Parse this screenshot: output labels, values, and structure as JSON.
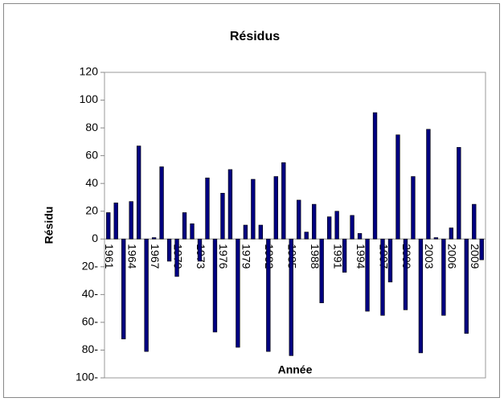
{
  "chart_data": {
    "type": "bar",
    "title": "Résidus",
    "x_label": "Année",
    "y_label": "Résidu",
    "categories": [
      "1961",
      null,
      null,
      "1964",
      null,
      null,
      "1967",
      null,
      null,
      "1970",
      null,
      null,
      "1973",
      null,
      null,
      "1976",
      null,
      null,
      "1979",
      null,
      null,
      "1982",
      null,
      null,
      "1985",
      null,
      null,
      "1988",
      null,
      null,
      "1991",
      null,
      null,
      "1994",
      null,
      null,
      "1997",
      null,
      null,
      "2000",
      null,
      null,
      "2003",
      null,
      null,
      "2006",
      null,
      null,
      "2009",
      null
    ],
    "values": [
      19,
      26,
      -72,
      27,
      67,
      -81,
      1,
      52,
      -16,
      -27,
      19,
      11,
      -16,
      44,
      -67,
      33,
      50,
      -78,
      10,
      43,
      10,
      -81,
      45,
      55,
      -84,
      28,
      5,
      25,
      -46,
      16,
      20,
      -24,
      17,
      4,
      -52,
      91,
      -55,
      -31,
      75,
      -51,
      45,
      -82,
      79,
      1,
      -55,
      8,
      66,
      -68,
      25,
      -15
    ],
    "color": "#000080",
    "ylim": [
      -100,
      120
    ],
    "yticks": [
      120,
      100,
      80,
      60,
      40,
      20,
      0,
      {
        "value": -20,
        "label": "20-"
      },
      {
        "value": -40,
        "label": "40-"
      },
      {
        "value": -60,
        "label": "60-"
      },
      {
        "value": -80,
        "label": "80-"
      },
      {
        "value": -100,
        "label": "100-"
      }
    ]
  }
}
